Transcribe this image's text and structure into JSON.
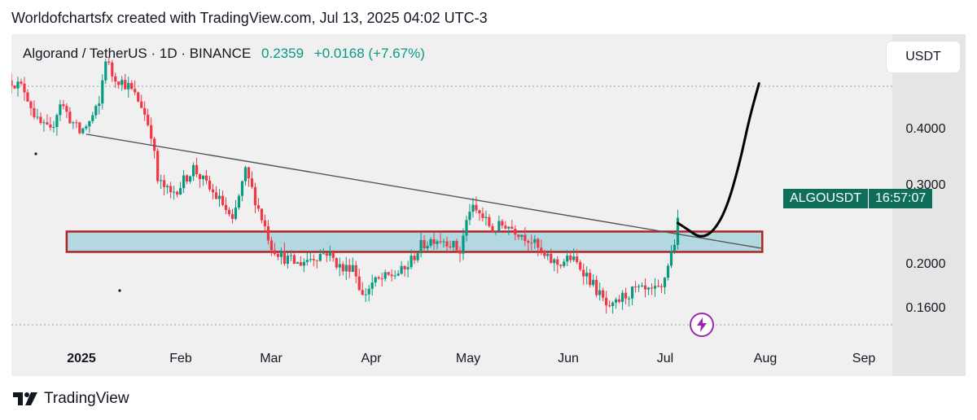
{
  "attribution": "Worldofchartsfx created with TradingView.com, Jul 13, 2025 04:02 UTC-3",
  "header": {
    "symbol": "Algorand / TetherUS · 1D · BINANCE",
    "price": "0.2359",
    "change": "+0.0168 (+7.67%)"
  },
  "currency_button": "USDT",
  "price_tag": {
    "symbol": "ALGOUSDT",
    "countdown": "16:57:07"
  },
  "footer": {
    "brand": "TradingView"
  },
  "colors": {
    "up": "#089981",
    "down": "#f23645",
    "zone_fill": "#a8d4de",
    "zone_border": "#b22222",
    "trendline": "#555555",
    "projection": "#000000",
    "tag_bg": "#0f6e5a",
    "bolt": "#9c27b0"
  },
  "icons": [
    "tradingview-logo-icon",
    "lightning-icon"
  ],
  "chart_data": {
    "type": "candlestick",
    "title": "Algorand / TetherUS · 1D · BINANCE",
    "y_scale": "log",
    "ylim": [
      0.145,
      0.49
    ],
    "y_ticks": [
      "0.4000",
      "0.3000",
      "0.2000",
      "0.1600"
    ],
    "x_ticks": [
      "2025",
      "Feb",
      "Mar",
      "Apr",
      "May",
      "Jun",
      "Jul",
      "Aug",
      "Sep"
    ],
    "x_range": [
      "2024-12-20",
      "2025-09-17"
    ],
    "last_price": 0.2359,
    "close_series": [
      [
        "2024-12-20",
        0.42
      ],
      [
        "2024-12-24",
        0.405
      ],
      [
        "2024-12-28",
        0.355
      ],
      [
        "2025-01-01",
        0.34
      ],
      [
        "2025-01-04",
        0.385
      ],
      [
        "2025-01-07",
        0.36
      ],
      [
        "2025-01-10",
        0.34
      ],
      [
        "2025-01-13",
        0.355
      ],
      [
        "2025-01-16",
        0.38
      ],
      [
        "2025-01-18",
        0.46
      ],
      [
        "2025-01-20",
        0.43
      ],
      [
        "2025-01-25",
        0.41
      ],
      [
        "2025-01-29",
        0.38
      ],
      [
        "2025-02-01",
        0.34
      ],
      [
        "2025-02-03",
        0.28
      ],
      [
        "2025-02-07",
        0.265
      ],
      [
        "2025-02-10",
        0.275
      ],
      [
        "2025-02-14",
        0.295
      ],
      [
        "2025-02-19",
        0.27
      ],
      [
        "2025-02-23",
        0.255
      ],
      [
        "2025-02-26",
        0.235
      ],
      [
        "2025-03-02",
        0.29
      ],
      [
        "2025-03-06",
        0.25
      ],
      [
        "2025-03-10",
        0.215
      ],
      [
        "2025-03-14",
        0.205
      ],
      [
        "2025-03-18",
        0.2
      ],
      [
        "2025-03-22",
        0.205
      ],
      [
        "2025-03-27",
        0.21
      ],
      [
        "2025-04-01",
        0.195
      ],
      [
        "2025-04-04",
        0.2
      ],
      [
        "2025-04-07",
        0.175
      ],
      [
        "2025-04-10",
        0.185
      ],
      [
        "2025-04-15",
        0.19
      ],
      [
        "2025-04-20",
        0.195
      ],
      [
        "2025-04-25",
        0.215
      ],
      [
        "2025-04-29",
        0.222
      ],
      [
        "2025-05-03",
        0.22
      ],
      [
        "2025-05-07",
        0.21
      ],
      [
        "2025-05-10",
        0.25
      ],
      [
        "2025-05-13",
        0.245
      ],
      [
        "2025-05-17",
        0.23
      ],
      [
        "2025-05-21",
        0.235
      ],
      [
        "2025-05-25",
        0.228
      ],
      [
        "2025-05-29",
        0.22
      ],
      [
        "2025-06-02",
        0.205
      ],
      [
        "2025-06-06",
        0.2
      ],
      [
        "2025-06-10",
        0.205
      ],
      [
        "2025-06-14",
        0.195
      ],
      [
        "2025-06-18",
        0.18
      ],
      [
        "2025-06-22",
        0.165
      ],
      [
        "2025-06-26",
        0.175
      ],
      [
        "2025-06-30",
        0.18
      ],
      [
        "2025-07-04",
        0.178
      ],
      [
        "2025-07-08",
        0.18
      ],
      [
        "2025-07-10",
        0.2
      ],
      [
        "2025-07-12",
        0.2191
      ],
      [
        "2025-07-13",
        0.2359
      ]
    ],
    "annotations": {
      "support_resistance_zone": [
        0.21,
        0.228
      ],
      "zone_dates": [
        "2025-01-06",
        "2025-08-08"
      ],
      "trendline": [
        [
          "2025-01-12",
          0.338
        ],
        [
          "2025-08-08",
          0.213
        ]
      ],
      "projection": [
        [
          "2025-07-13",
          0.236
        ],
        [
          "2025-07-16",
          0.23
        ],
        [
          "2025-07-20",
          0.222
        ],
        [
          "2025-07-24",
          0.228
        ],
        [
          "2025-07-28",
          0.25
        ],
        [
          "2025-08-01",
          0.3
        ],
        [
          "2025-08-04",
          0.36
        ],
        [
          "2025-08-07",
          0.415
        ]
      ]
    }
  }
}
